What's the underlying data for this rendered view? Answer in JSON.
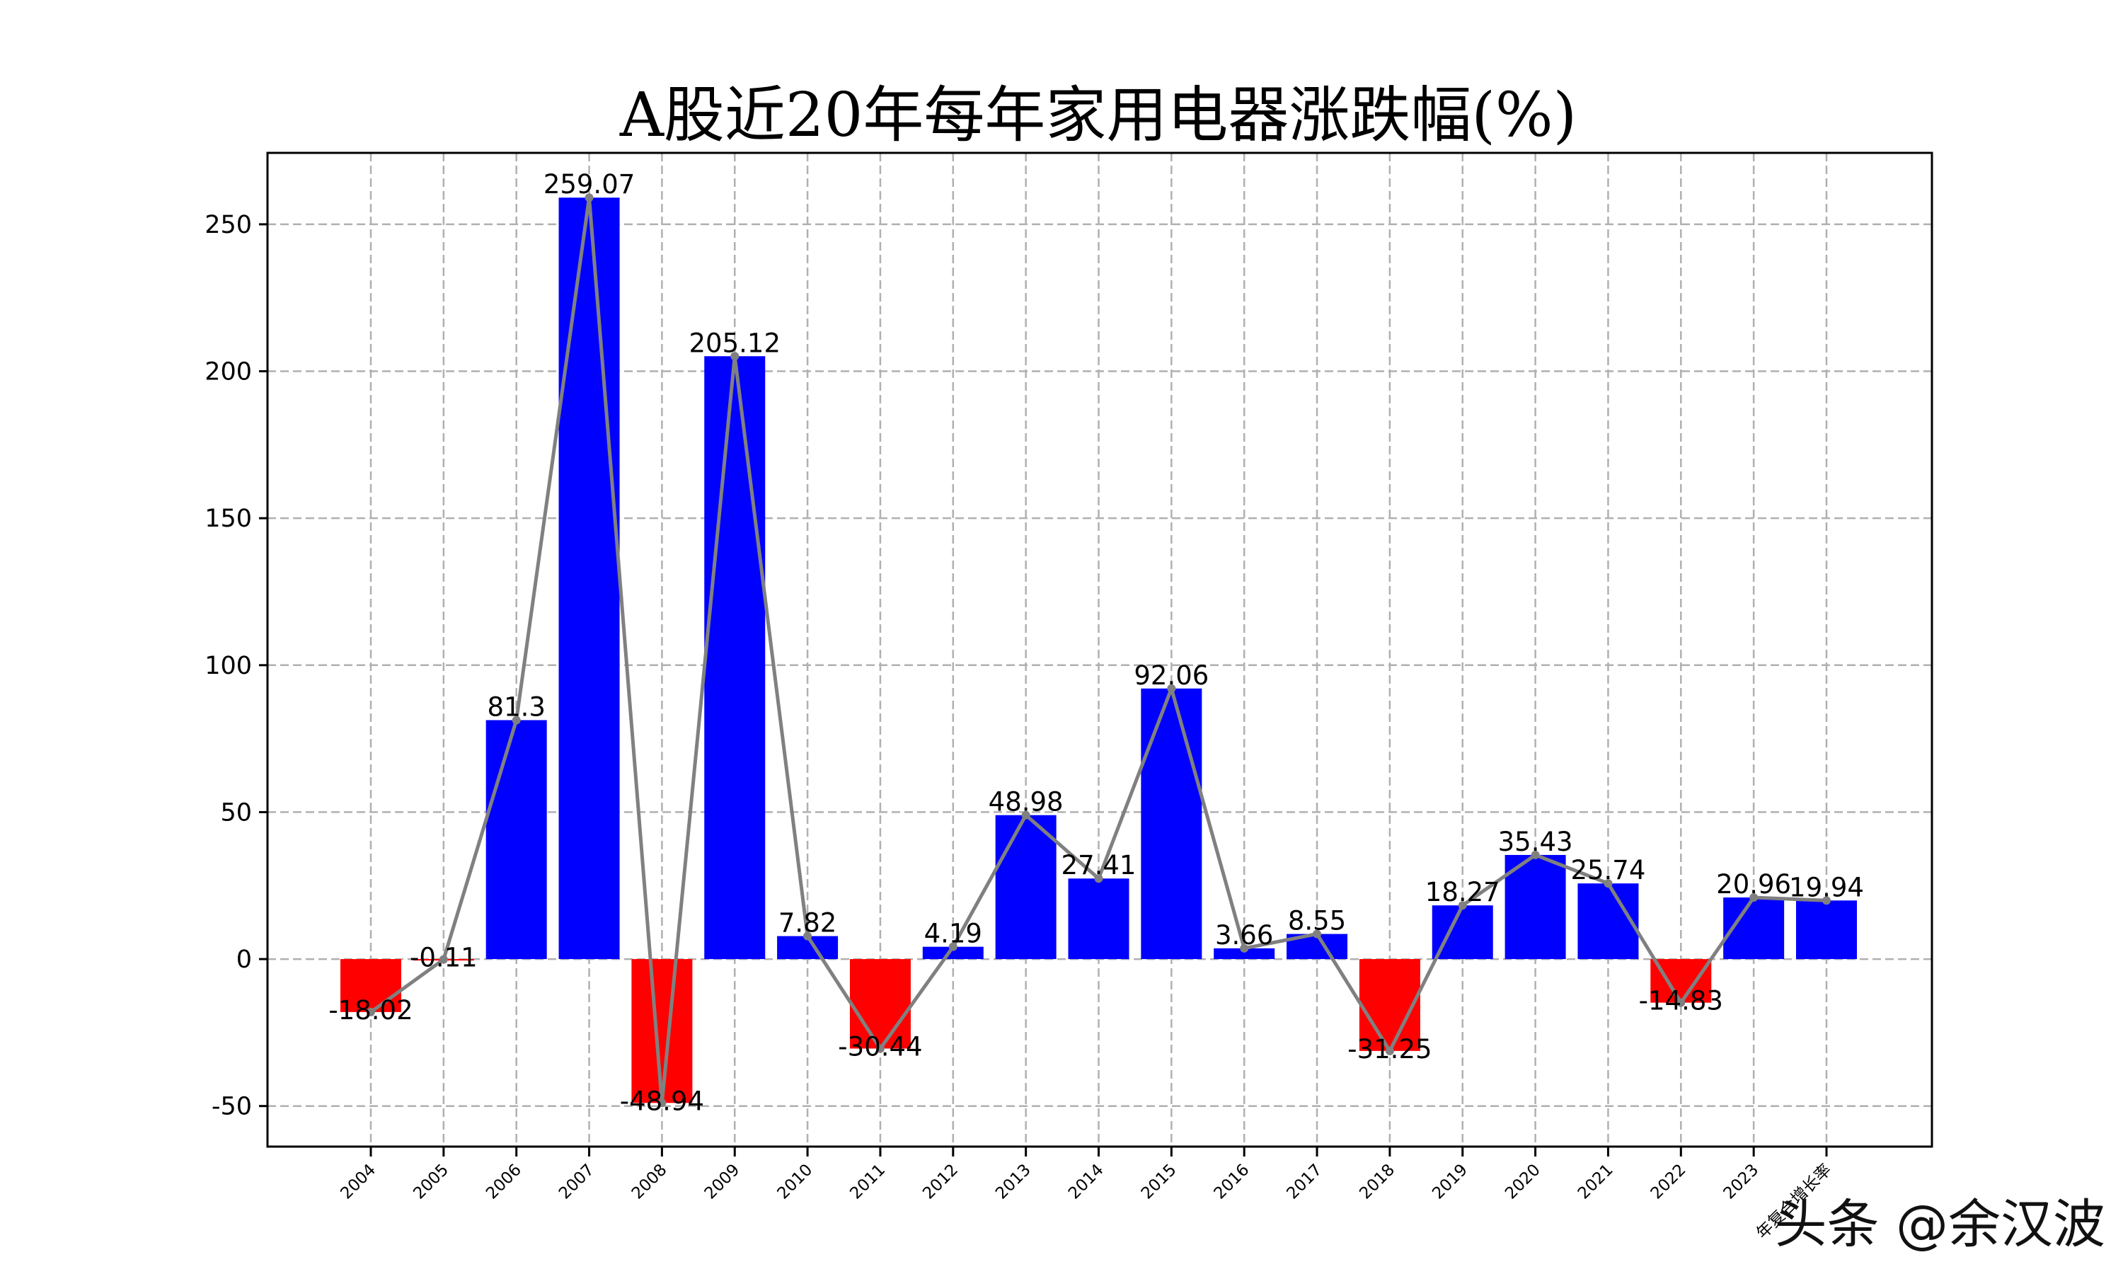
{
  "chart_data": {
    "type": "bar",
    "title": "A股近20年每年家用电器涨跌幅(%)",
    "xlabel": "",
    "ylabel": "",
    "categories": [
      "2004",
      "2005",
      "2006",
      "2007",
      "2008",
      "2009",
      "2010",
      "2011",
      "2012",
      "2013",
      "2014",
      "2015",
      "2016",
      "2017",
      "2018",
      "2019",
      "2020",
      "2021",
      "2022",
      "2023",
      "年复合增长率"
    ],
    "values": [
      -18.02,
      -0.11,
      81.3,
      259.07,
      -48.94,
      205.12,
      7.82,
      -30.44,
      4.19,
      48.98,
      27.41,
      92.06,
      3.66,
      8.55,
      -31.25,
      18.27,
      35.43,
      25.74,
      -14.83,
      20.96,
      19.94
    ],
    "data_labels": [
      "-18.02",
      "-0.11",
      "81.3",
      "259.07",
      "-48.94",
      "205.12",
      "7.82",
      "-30.44",
      "4.19",
      "48.98",
      "27.41",
      "92.06",
      "3.66",
      "8.55",
      "-31.25",
      "18.27",
      "35.43",
      "25.74",
      "-14.83",
      "20.96",
      "19.94"
    ],
    "overlay_line": true,
    "ylim": [
      -63.8,
      274.3
    ],
    "yticks": [
      -50,
      0,
      50,
      100,
      150,
      200,
      250
    ],
    "grid": true,
    "colors": {
      "positive": "#0000ff",
      "negative": "#ff0000",
      "line": "#808080",
      "grid": "#b0b0b0"
    }
  },
  "watermark": "头条 @余汉波"
}
